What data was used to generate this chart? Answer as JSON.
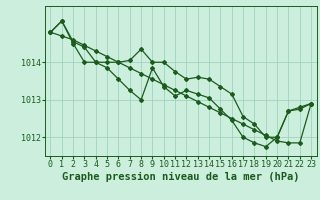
{
  "xlabel": "Graphe pression niveau de la mer (hPa)",
  "hours": [
    0,
    1,
    2,
    3,
    4,
    5,
    6,
    7,
    8,
    9,
    10,
    11,
    12,
    13,
    14,
    15,
    16,
    17,
    18,
    19,
    20,
    21,
    22,
    23
  ],
  "line_straight": [
    1014.8,
    1014.7,
    1014.6,
    1014.45,
    1014.3,
    1014.15,
    1014.0,
    1013.85,
    1013.7,
    1013.55,
    1013.4,
    1013.25,
    1013.1,
    1012.95,
    1012.8,
    1012.65,
    1012.5,
    1012.35,
    1012.2,
    1012.05,
    1011.9,
    1011.85,
    1011.85,
    1012.9
  ],
  "line2": [
    1014.8,
    1015.1,
    1014.55,
    1014.4,
    1014.0,
    1014.0,
    1014.0,
    1014.05,
    1014.35,
    1014.0,
    1014.0,
    1013.75,
    1013.55,
    1013.6,
    1013.55,
    1013.35,
    1013.15,
    1012.55,
    1012.35,
    1012.0,
    1012.0,
    1012.7,
    1012.8,
    1012.9
  ],
  "line3": [
    1014.8,
    1015.1,
    1014.5,
    1014.0,
    1014.0,
    1013.85,
    1013.55,
    1013.25,
    1013.0,
    1013.85,
    1013.35,
    1013.1,
    1013.25,
    1013.15,
    1013.05,
    1012.75,
    1012.45,
    1012.0,
    1011.85,
    1011.75,
    1012.0,
    1012.7,
    1012.75,
    1012.9
  ],
  "line_color": "#1a5c1a",
  "bg_color": "#cceedd",
  "grid_color": "#99ccbb",
  "ylim": [
    1011.5,
    1015.5
  ],
  "yticks": [
    1012,
    1013,
    1014
  ],
  "xticks": [
    0,
    1,
    2,
    3,
    4,
    5,
    6,
    7,
    8,
    9,
    10,
    11,
    12,
    13,
    14,
    15,
    16,
    17,
    18,
    19,
    20,
    21,
    22,
    23
  ],
  "xlabel_fontsize": 7.5,
  "tick_fontsize": 6.0,
  "line_width": 0.9,
  "marker": "D",
  "marker_size": 2.0
}
